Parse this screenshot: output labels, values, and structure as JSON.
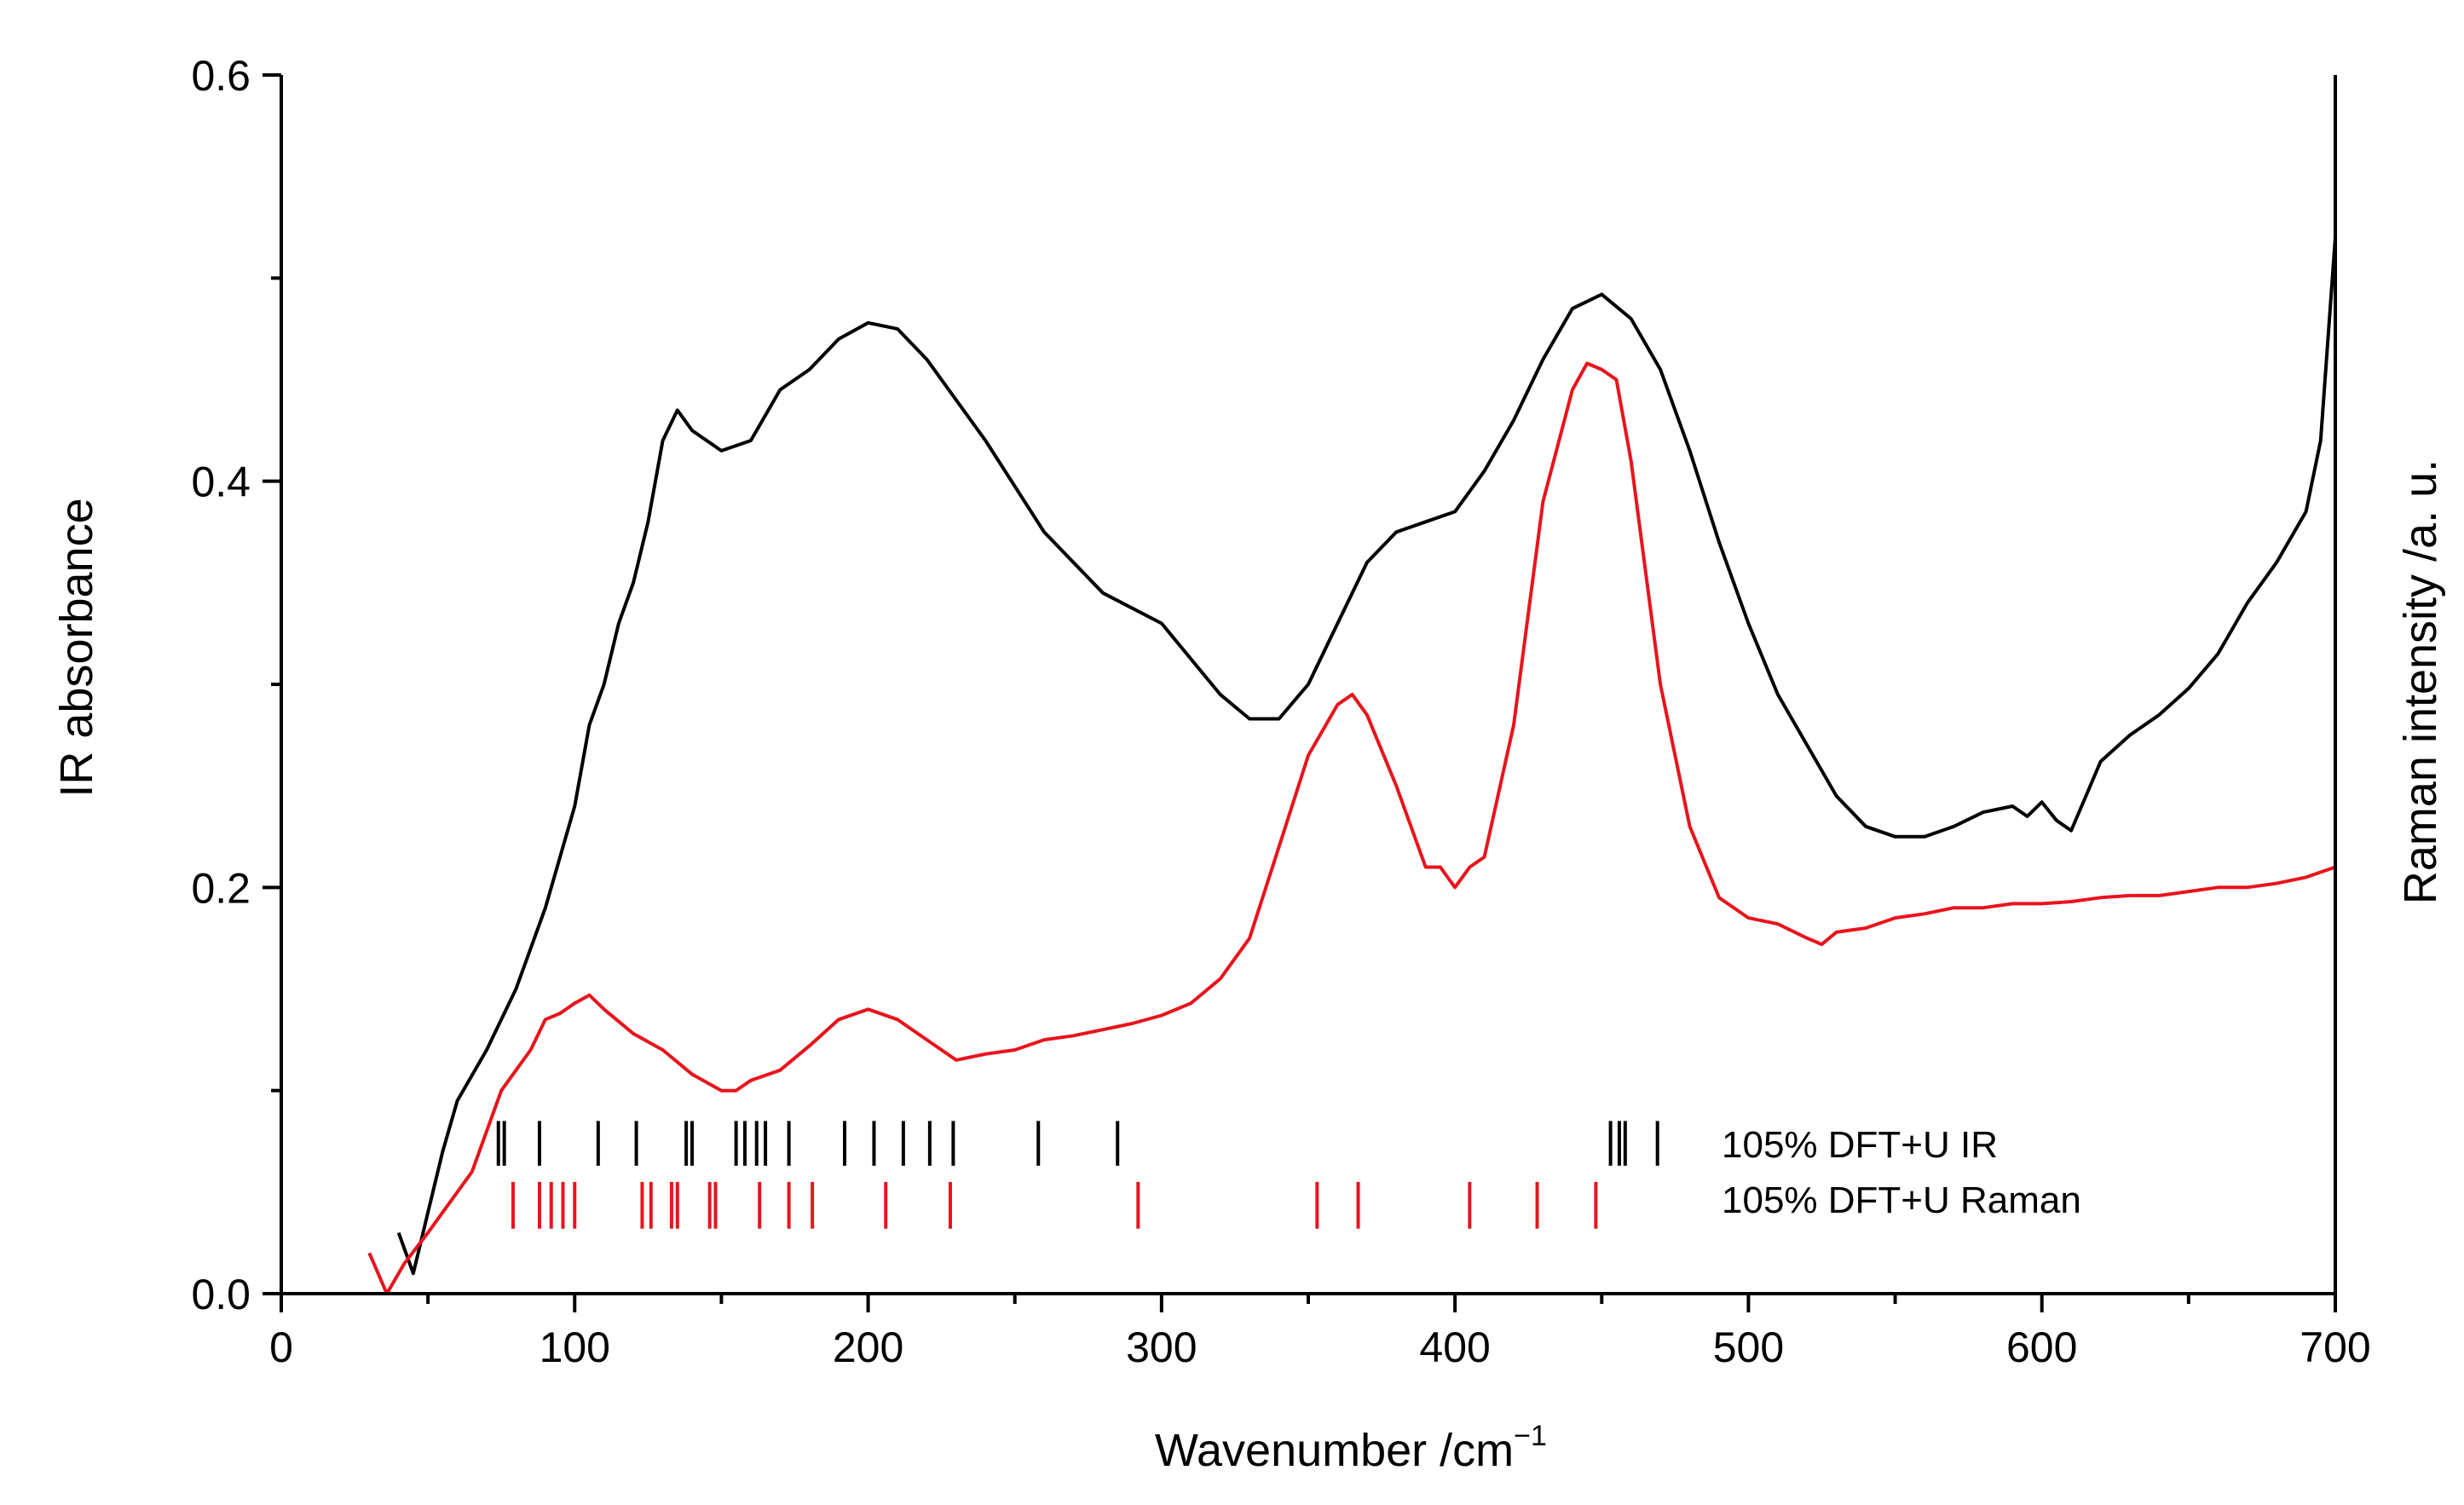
{
  "chart_data": {
    "type": "line",
    "title": "",
    "xlabel": "Wavenumber /cm",
    "xlabel_sup": "−1",
    "ylabel_left": "IR absorbance",
    "ylabel_right": "Raman intensity /a. u.",
    "xlim": [
      0,
      700
    ],
    "ylim": [
      0,
      0.6
    ],
    "grid": false,
    "x_ticks": [
      "0",
      "100",
      "200",
      "300",
      "400",
      "500",
      "600",
      "700"
    ],
    "y_ticks": [
      "0.0",
      "0.2",
      "0.4",
      "0.6"
    ],
    "colors": {
      "ir": "#000000",
      "raman": "#e8141c"
    },
    "series": [
      {
        "name": "IR absorbance",
        "color": "#000000",
        "x": [
          40,
          45,
          50,
          55,
          60,
          70,
          80,
          90,
          100,
          105,
          110,
          115,
          120,
          125,
          130,
          135,
          140,
          145,
          150,
          160,
          170,
          180,
          190,
          200,
          210,
          220,
          240,
          260,
          280,
          300,
          320,
          330,
          340,
          350,
          360,
          370,
          380,
          390,
          400,
          410,
          420,
          430,
          440,
          450,
          460,
          470,
          480,
          490,
          500,
          510,
          520,
          530,
          540,
          550,
          560,
          570,
          580,
          590,
          595,
          600,
          605,
          610,
          615,
          620,
          630,
          640,
          650,
          660,
          670,
          680,
          690,
          695,
          700
        ],
        "y": [
          0.03,
          0.01,
          0.04,
          0.07,
          0.095,
          0.12,
          0.15,
          0.19,
          0.24,
          0.28,
          0.3,
          0.33,
          0.35,
          0.38,
          0.42,
          0.435,
          0.425,
          0.42,
          0.415,
          0.42,
          0.445,
          0.455,
          0.47,
          0.478,
          0.475,
          0.46,
          0.42,
          0.375,
          0.345,
          0.33,
          0.295,
          0.283,
          0.283,
          0.3,
          0.33,
          0.36,
          0.375,
          0.38,
          0.385,
          0.405,
          0.43,
          0.46,
          0.485,
          0.492,
          0.48,
          0.455,
          0.415,
          0.37,
          0.33,
          0.295,
          0.27,
          0.245,
          0.23,
          0.225,
          0.225,
          0.23,
          0.237,
          0.24,
          0.235,
          0.242,
          0.233,
          0.228,
          0.245,
          0.262,
          0.275,
          0.285,
          0.298,
          0.315,
          0.34,
          0.36,
          0.385,
          0.42,
          0.52
        ]
      },
      {
        "name": "Raman intensity",
        "color": "#e8141c",
        "x": [
          30,
          36,
          42,
          50,
          65,
          75,
          85,
          90,
          95,
          100,
          105,
          110,
          120,
          130,
          140,
          150,
          155,
          160,
          170,
          180,
          190,
          200,
          210,
          220,
          230,
          240,
          250,
          260,
          270,
          280,
          290,
          300,
          310,
          320,
          330,
          340,
          350,
          360,
          365,
          370,
          380,
          390,
          395,
          400,
          405,
          410,
          420,
          430,
          440,
          445,
          450,
          455,
          460,
          470,
          480,
          490,
          500,
          510,
          520,
          525,
          530,
          540,
          550,
          560,
          570,
          580,
          590,
          600,
          610,
          620,
          630,
          640,
          650,
          660,
          670,
          680,
          690,
          700
        ],
        "y": [
          0.02,
          0.0,
          0.015,
          0.03,
          0.06,
          0.1,
          0.12,
          0.135,
          0.138,
          0.143,
          0.147,
          0.14,
          0.128,
          0.12,
          0.108,
          0.1,
          0.1,
          0.105,
          0.11,
          0.122,
          0.135,
          0.14,
          0.135,
          0.125,
          0.115,
          0.118,
          0.12,
          0.125,
          0.127,
          0.13,
          0.133,
          0.137,
          0.143,
          0.155,
          0.175,
          0.22,
          0.265,
          0.29,
          0.295,
          0.285,
          0.25,
          0.21,
          0.21,
          0.2,
          0.21,
          0.215,
          0.28,
          0.39,
          0.445,
          0.458,
          0.455,
          0.45,
          0.41,
          0.3,
          0.23,
          0.195,
          0.185,
          0.182,
          0.175,
          0.172,
          0.178,
          0.18,
          0.185,
          0.187,
          0.19,
          0.19,
          0.192,
          0.192,
          0.193,
          0.195,
          0.196,
          0.196,
          0.198,
          0.2,
          0.2,
          0.202,
          0.205,
          0.21
        ]
      }
    ],
    "stick_series": [
      {
        "name": "105% DFT+U IR",
        "label": "105% DFT+U IR",
        "color": "#000000",
        "positions": [
          74,
          76,
          88,
          108,
          121,
          138,
          140,
          155,
          158,
          162,
          165,
          173,
          192,
          202,
          212,
          221,
          229,
          258,
          285,
          453,
          456,
          458,
          469
        ]
      },
      {
        "name": "105% DFT+U Raman",
        "label": "105% DFT+U Raman",
        "color": "#e8141c",
        "positions": [
          79,
          88,
          92,
          96,
          100,
          123,
          126,
          133,
          135,
          146,
          148,
          163,
          173,
          181,
          206,
          228,
          292,
          353,
          367,
          405,
          428,
          448
        ]
      }
    ]
  }
}
